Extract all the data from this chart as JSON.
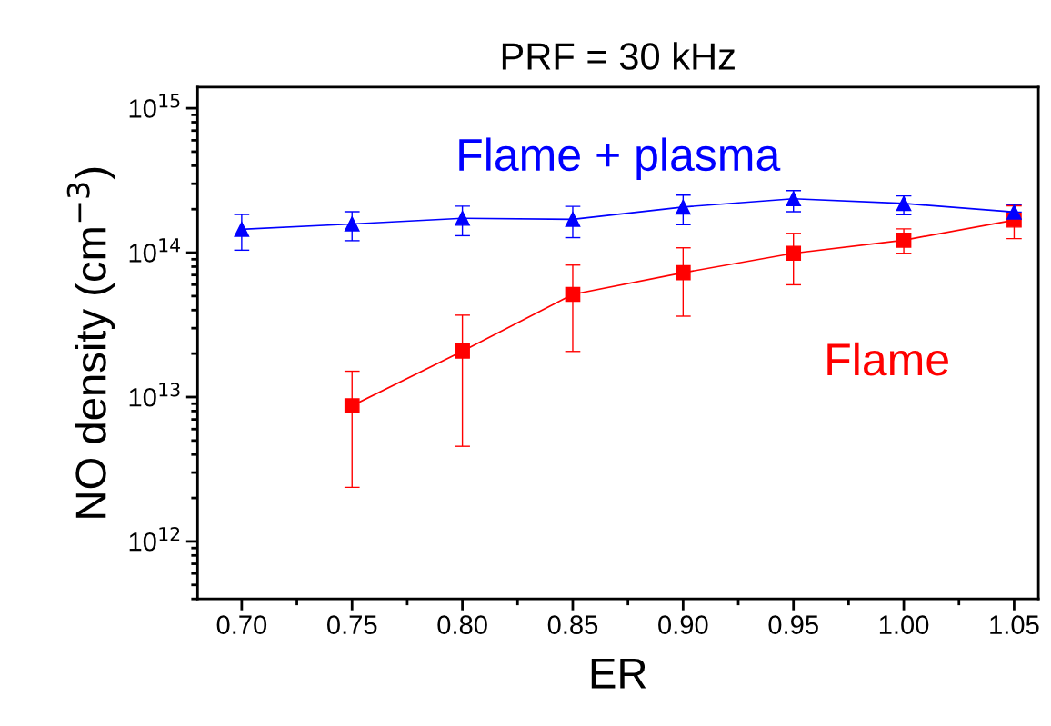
{
  "chart_data": {
    "type": "line",
    "title": "PRF = 30 kHz",
    "xlabel": "ER",
    "ylabel": "NO density (cm$^{−3}$)",
    "log": "y",
    "xlim": [
      0.68,
      1.061
    ],
    "xticks": [
      {
        "value": 0.7,
        "label": "0.70"
      },
      0.75,
      {
        "value": 0.8,
        "label": "0.80"
      },
      0.85,
      {
        "value": 0.9,
        "label": "0.90"
      },
      0.95,
      {
        "value": 1.0,
        "label": "1.00"
      },
      1.05
    ],
    "ylim": [
      400000000000.0,
      1400000000000000.0
    ],
    "yticks": [
      {
        "value": 1000000000000.0,
        "label": "10$^{12}$"
      },
      {
        "value": 10000000000000.0,
        "label": "10$^{13}$"
      },
      {
        "value": 100000000000000.0,
        "label": "10$^{14}$"
      },
      {
        "value": 1000000000000000.0,
        "label": "10$^{15}$"
      }
    ],
    "grid": false,
    "legend": false,
    "series": [
      {
        "name": "Flame + plasma",
        "color": "#0000ff",
        "marker": "triangle",
        "x": [
          0.7,
          0.75,
          0.8,
          0.85,
          0.9,
          0.95,
          1.0,
          1.05
        ],
        "values": [
          145000000000000.0,
          158000000000000.0,
          173000000000000.0,
          170000000000000.0,
          207000000000000.0,
          236000000000000.0,
          219000000000000.0,
          191000000000000.0
        ],
        "errors": [
          [
            104000000000000.0,
            184000000000000.0
          ],
          [
            121000000000000.0,
            192000000000000.0
          ],
          [
            131000000000000.0,
            210000000000000.0
          ],
          [
            127000000000000.0,
            209000000000000.0
          ],
          [
            156000000000000.0,
            250000000000000.0
          ],
          [
            192000000000000.0,
            269000000000000.0
          ],
          [
            183000000000000.0,
            247000000000000.0
          ],
          [
            191000000000000.0,
            215000000000000.0
          ]
        ]
      },
      {
        "name": "Flame",
        "color": "#ff0000",
        "marker": "square",
        "x": [
          0.75,
          0.8,
          0.85,
          0.9,
          0.95,
          1.0,
          1.05
        ],
        "values": [
          8700000000000.0,
          20800000000000.0,
          51400000000000.0,
          72600000000000.0,
          99000000000000.0,
          122000000000000.0,
          168000000000000.0
        ],
        "errors": [
          [
            2370000000000.0,
            15100000000000.0
          ],
          [
            4560000000000.0,
            36900000000000.0
          ],
          [
            20700000000000.0,
            82000000000000.0
          ],
          [
            36300000000000.0,
            108000000000000.0
          ],
          [
            59900000000000.0,
            136000000000000.0
          ],
          [
            99000000000000.0,
            146000000000000.0
          ],
          [
            125000000000000.0,
            211000000000000.0
          ]
        ]
      }
    ]
  }
}
